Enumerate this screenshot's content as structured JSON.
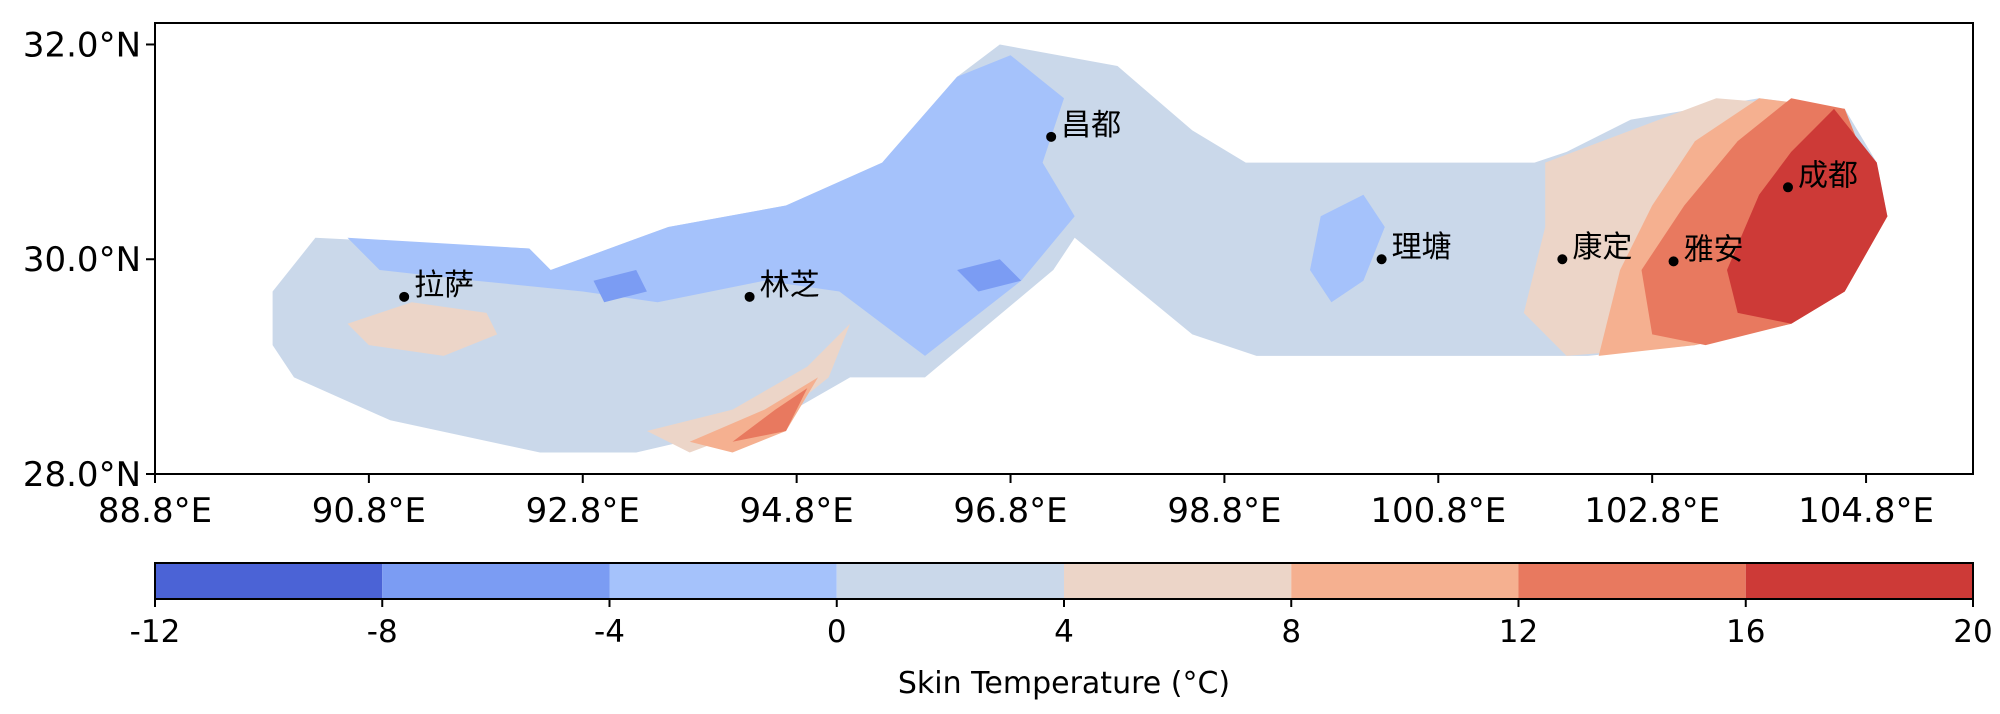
{
  "chart_data": {
    "type": "heatmap",
    "title": "",
    "x_axis": {
      "ticks": [
        88.8,
        90.8,
        92.8,
        94.8,
        96.8,
        98.8,
        100.8,
        102.8,
        104.8
      ],
      "tick_labels": [
        "88.8°E",
        "90.8°E",
        "92.8°E",
        "94.8°E",
        "96.8°E",
        "98.8°E",
        "100.8°E",
        "102.8°E",
        "104.8°E"
      ],
      "range": [
        88.8,
        105.8
      ]
    },
    "y_axis": {
      "ticks": [
        28.0,
        30.0,
        32.0
      ],
      "tick_labels": [
        "28.0°N",
        "30.0°N",
        "32.0°N"
      ],
      "range": [
        28.0,
        32.2
      ]
    },
    "colorbar": {
      "label": "Skin Temperature (°C)",
      "levels": [
        -12,
        -8,
        -4,
        0,
        4,
        8,
        12,
        16,
        20
      ],
      "level_labels": [
        "-12",
        "-8",
        "-4",
        "0",
        "4",
        "8",
        "12",
        "16",
        "20"
      ],
      "colors": [
        "#4b63d6",
        "#7b9cf3",
        "#a5c2fb",
        "#cad8ea",
        "#ecd5c8",
        "#f5b090",
        "#e8795f",
        "#cd3a37"
      ]
    },
    "cities": [
      {
        "name": "拉萨",
        "lon": 91.13,
        "lat": 29.65
      },
      {
        "name": "林芝",
        "lon": 94.36,
        "lat": 29.65
      },
      {
        "name": "昌都",
        "lon": 97.18,
        "lat": 31.14
      },
      {
        "name": "理塘",
        "lon": 100.27,
        "lat": 30.0
      },
      {
        "name": "康定",
        "lon": 101.96,
        "lat": 30.0
      },
      {
        "name": "雅安",
        "lon": 103.0,
        "lat": 29.98
      },
      {
        "name": "成都",
        "lon": 104.07,
        "lat": 30.67
      }
    ],
    "regions": [
      {
        "level": 3,
        "description": "domain background 0-4 °C",
        "polygon": [
          [
            89.9,
            29.7
          ],
          [
            90.3,
            30.2
          ],
          [
            92.3,
            30.1
          ],
          [
            92.5,
            29.9
          ],
          [
            93.6,
            30.3
          ],
          [
            94.7,
            30.5
          ],
          [
            95.6,
            30.9
          ],
          [
            96.3,
            31.7
          ],
          [
            96.7,
            32.0
          ],
          [
            97.8,
            31.8
          ],
          [
            98.5,
            31.2
          ],
          [
            99.0,
            30.9
          ],
          [
            101.7,
            30.9
          ],
          [
            102.0,
            31.0
          ],
          [
            102.6,
            31.3
          ],
          [
            103.8,
            31.5
          ],
          [
            104.6,
            31.4
          ],
          [
            104.9,
            30.9
          ],
          [
            105.0,
            30.4
          ],
          [
            104.6,
            29.7
          ],
          [
            104.1,
            29.4
          ],
          [
            103.2,
            29.2
          ],
          [
            102.2,
            29.1
          ],
          [
            99.1,
            29.1
          ],
          [
            98.5,
            29.3
          ],
          [
            97.4,
            30.2
          ],
          [
            97.2,
            29.9
          ],
          [
            96.0,
            28.9
          ],
          [
            95.3,
            28.9
          ],
          [
            94.6,
            28.5
          ],
          [
            93.3,
            28.2
          ],
          [
            92.4,
            28.2
          ],
          [
            91.0,
            28.5
          ],
          [
            90.1,
            28.9
          ],
          [
            89.9,
            29.2
          ]
        ]
      },
      {
        "level": 2,
        "description": "cool band -4-0 °C",
        "polygon": [
          [
            90.6,
            30.2
          ],
          [
            92.3,
            30.1
          ],
          [
            92.5,
            29.9
          ],
          [
            93.6,
            30.3
          ],
          [
            94.7,
            30.5
          ],
          [
            95.6,
            30.9
          ],
          [
            96.3,
            31.7
          ],
          [
            96.8,
            31.9
          ],
          [
            97.3,
            31.5
          ],
          [
            97.1,
            30.9
          ],
          [
            97.4,
            30.4
          ],
          [
            96.9,
            29.8
          ],
          [
            96.0,
            29.1
          ],
          [
            95.2,
            29.7
          ],
          [
            94.5,
            29.8
          ],
          [
            93.5,
            29.6
          ],
          [
            92.8,
            29.7
          ],
          [
            91.8,
            29.8
          ],
          [
            90.9,
            29.9
          ]
        ]
      },
      {
        "level": 2,
        "description": "cool patch near 理塘",
        "polygon": [
          [
            99.7,
            30.4
          ],
          [
            100.1,
            30.6
          ],
          [
            100.3,
            30.3
          ],
          [
            100.1,
            29.8
          ],
          [
            99.8,
            29.6
          ],
          [
            99.6,
            29.9
          ]
        ]
      },
      {
        "level": 1,
        "description": "cold spot",
        "polygon": [
          [
            92.9,
            29.8
          ],
          [
            93.3,
            29.9
          ],
          [
            93.4,
            29.7
          ],
          [
            93.0,
            29.6
          ]
        ]
      },
      {
        "level": 1,
        "description": "cold spot",
        "polygon": [
          [
            96.3,
            29.9
          ],
          [
            96.7,
            30.0
          ],
          [
            96.9,
            29.8
          ],
          [
            96.5,
            29.7
          ]
        ]
      },
      {
        "level": 4,
        "description": "warm patch near 拉萨",
        "polygon": [
          [
            90.6,
            29.4
          ],
          [
            91.2,
            29.6
          ],
          [
            91.9,
            29.5
          ],
          [
            92.0,
            29.3
          ],
          [
            91.5,
            29.1
          ],
          [
            90.8,
            29.2
          ]
        ]
      },
      {
        "level": 4,
        "description": "warm strip south-east of 林芝",
        "polygon": [
          [
            93.4,
            28.4
          ],
          [
            94.2,
            28.6
          ],
          [
            94.9,
            29.0
          ],
          [
            95.3,
            29.4
          ],
          [
            95.1,
            28.9
          ],
          [
            94.6,
            28.5
          ],
          [
            93.8,
            28.2
          ]
        ]
      },
      {
        "level": 5,
        "description": "warm core south-east of 林芝",
        "polygon": [
          [
            93.8,
            28.3
          ],
          [
            94.5,
            28.6
          ],
          [
            95.0,
            28.9
          ],
          [
            94.7,
            28.4
          ],
          [
            94.2,
            28.2
          ]
        ]
      },
      {
        "level": 6,
        "description": "hot spot south-east of 林芝",
        "polygon": [
          [
            94.2,
            28.3
          ],
          [
            94.6,
            28.6
          ],
          [
            94.9,
            28.8
          ],
          [
            94.7,
            28.4
          ]
        ]
      },
      {
        "level": 4,
        "description": "east gradient 4-8 °C",
        "polygon": [
          [
            101.8,
            30.9
          ],
          [
            102.6,
            31.2
          ],
          [
            103.4,
            31.5
          ],
          [
            104.6,
            31.4
          ],
          [
            105.0,
            30.4
          ],
          [
            104.6,
            29.7
          ],
          [
            104.1,
            29.4
          ],
          [
            103.2,
            29.2
          ],
          [
            102.0,
            29.1
          ],
          [
            101.6,
            29.5
          ],
          [
            101.8,
            30.3
          ]
        ]
      },
      {
        "level": 5,
        "description": "east gradient 8-12 °C",
        "polygon": [
          [
            102.5,
            29.9
          ],
          [
            102.8,
            30.5
          ],
          [
            103.2,
            31.1
          ],
          [
            103.8,
            31.5
          ],
          [
            104.6,
            31.4
          ],
          [
            105.0,
            30.4
          ],
          [
            104.6,
            29.7
          ],
          [
            104.1,
            29.4
          ],
          [
            103.2,
            29.2
          ],
          [
            102.3,
            29.1
          ]
        ]
      },
      {
        "level": 6,
        "description": "east gradient 12-16 °C",
        "polygon": [
          [
            102.7,
            29.9
          ],
          [
            103.1,
            30.5
          ],
          [
            103.6,
            31.1
          ],
          [
            104.1,
            31.5
          ],
          [
            104.6,
            31.4
          ],
          [
            105.0,
            30.4
          ],
          [
            104.6,
            29.7
          ],
          [
            104.1,
            29.4
          ],
          [
            103.3,
            29.2
          ],
          [
            102.8,
            29.3
          ]
        ]
      },
      {
        "level": 7,
        "description": "east gradient 16-20 °C",
        "polygon": [
          [
            103.5,
            29.9
          ],
          [
            103.8,
            30.6
          ],
          [
            104.1,
            31.0
          ],
          [
            104.5,
            31.4
          ],
          [
            104.9,
            30.9
          ],
          [
            105.0,
            30.4
          ],
          [
            104.6,
            29.7
          ],
          [
            104.1,
            29.4
          ],
          [
            103.6,
            29.5
          ]
        ]
      }
    ]
  }
}
